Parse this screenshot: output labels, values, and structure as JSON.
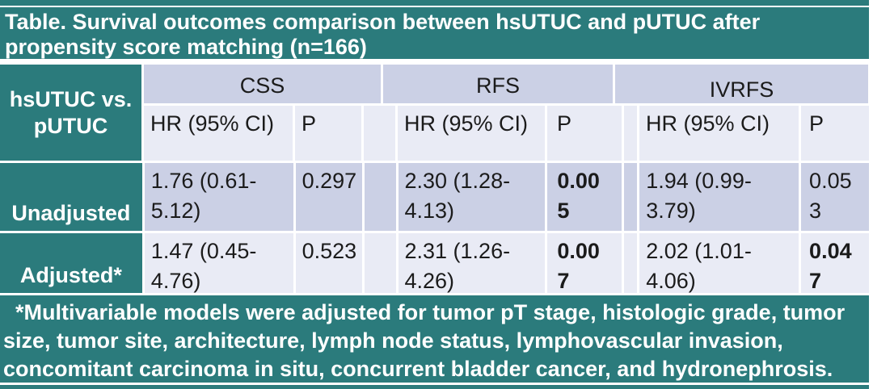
{
  "colors": {
    "teal": "#2b7b7c",
    "band_dark": "#cbd0e5",
    "band_light": "#e9ebf5",
    "text_dark": "#1b1b1b",
    "text_light": "#ffffff"
  },
  "title": "Table. Survival outcomes comparison between hsUTUC and pUTUC after\npropensity score matching (n=166)",
  "header": {
    "row_label": "hsUTUC vs.\npUTUC",
    "groups": [
      {
        "label": "CSS",
        "hr": "HR (95% CI)",
        "p": "P"
      },
      {
        "label": "RFS",
        "hr": "HR (95% CI)",
        "p": "P"
      },
      {
        "label": "IVRFS",
        "hr": "HR (95% CI)",
        "p": "P"
      }
    ]
  },
  "rows": [
    {
      "label": "Unadjusted",
      "cells": [
        {
          "hr": "1.76 (0.61-5.12)",
          "p": "0.297",
          "p_bold": false
        },
        {
          "hr": "2.30 (1.28-4.13)",
          "p": "0.005",
          "p_bold": true
        },
        {
          "hr": "1.94 (0.99-3.79)",
          "p": "0.053",
          "p_bold": false
        }
      ]
    },
    {
      "label": "Adjusted*",
      "cells": [
        {
          "hr": "1.47 (0.45-4.76)",
          "p": "0.523",
          "p_bold": false
        },
        {
          "hr": "2.31 (1.26-4.26)",
          "p": "0.007",
          "p_bold": true
        },
        {
          "hr": "2.02 (1.01-4.06)",
          "p": "0.047",
          "p_bold": true
        }
      ]
    }
  ],
  "footnote": "  *Multivariable models were adjusted for tumor pT stage, histologic grade, tumor\nsize, tumor site, architecture, lymph node status, lymphovascular invasion,\nconcomitant carcinoma in situ, concurrent bladder cancer, and hydronephrosis."
}
